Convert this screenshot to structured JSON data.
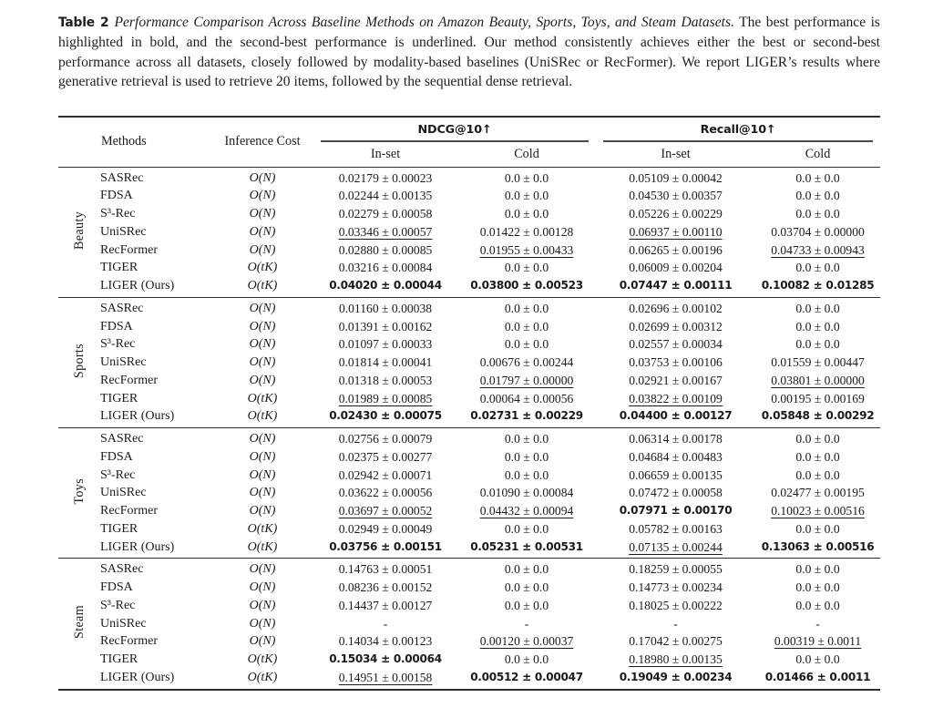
{
  "colors": {
    "text": "#1b1b1b",
    "rule": "#2e2e2e",
    "background": "#ffffff"
  },
  "caption": {
    "label": "Table 2",
    "title": "Performance Comparison Across Baseline Methods on Amazon Beauty, Sports, Toys, and Steam Datasets.",
    "body": "The best performance is highlighted in bold, and the second-best performance is underlined. Our method consistently achieves either the best or second-best performance across all datasets, closely followed by modality-based baselines (UniSRec or RecFormer). We report LIGER’s results where generative retrieval is used to retrieve 20 items, followed by the sequential dense retrieval."
  },
  "table": {
    "headers": {
      "methods": "Methods",
      "inference_cost": "Inference Cost",
      "ndcg": "NDCG@10↑",
      "recall": "Recall@10↑",
      "in_set": "In-set",
      "cold": "Cold"
    },
    "style_legend": {
      "normal": "plain value",
      "bold": "best result",
      "underline": "second-best result"
    },
    "sections": [
      {
        "dataset": "Beauty",
        "rows": [
          {
            "method": "SASRec",
            "cost": "O(N)",
            "cells": [
              {
                "text": "0.02179 ± 0.00023",
                "style": "normal"
              },
              {
                "text": "0.0 ± 0.0",
                "style": "normal"
              },
              {
                "text": "0.05109 ± 0.00042",
                "style": "normal"
              },
              {
                "text": "0.0 ± 0.0",
                "style": "normal"
              }
            ]
          },
          {
            "method": "FDSA",
            "cost": "O(N)",
            "cells": [
              {
                "text": "0.02244 ± 0.00135",
                "style": "normal"
              },
              {
                "text": "0.0 ± 0.0",
                "style": "normal"
              },
              {
                "text": "0.04530 ± 0.00357",
                "style": "normal"
              },
              {
                "text": "0.0 ± 0.0",
                "style": "normal"
              }
            ]
          },
          {
            "method": "S³-Rec",
            "cost": "O(N)",
            "cells": [
              {
                "text": "0.02279 ± 0.00058",
                "style": "normal"
              },
              {
                "text": "0.0 ± 0.0",
                "style": "normal"
              },
              {
                "text": "0.05226 ± 0.00229",
                "style": "normal"
              },
              {
                "text": "0.0 ± 0.0",
                "style": "normal"
              }
            ]
          },
          {
            "method": "UniSRec",
            "cost": "O(N)",
            "cells": [
              {
                "text": "0.03346 ± 0.00057",
                "style": "underline"
              },
              {
                "text": "0.01422 ± 0.00128",
                "style": "normal"
              },
              {
                "text": "0.06937 ± 0.00110",
                "style": "underline"
              },
              {
                "text": "0.03704 ± 0.00000",
                "style": "normal"
              }
            ]
          },
          {
            "method": "RecFormer",
            "cost": "O(N)",
            "cells": [
              {
                "text": "0.02880 ± 0.00085",
                "style": "normal"
              },
              {
                "text": "0.01955 ± 0.00433",
                "style": "underline"
              },
              {
                "text": "0.06265 ± 0.00196",
                "style": "normal"
              },
              {
                "text": "0.04733 ± 0.00943",
                "style": "underline"
              }
            ]
          },
          {
            "method": "TIGER",
            "cost": "O(tK)",
            "cells": [
              {
                "text": "0.03216 ± 0.00084",
                "style": "normal"
              },
              {
                "text": "0.0 ± 0.0",
                "style": "normal"
              },
              {
                "text": "0.06009 ± 0.00204",
                "style": "normal"
              },
              {
                "text": "0.0 ± 0.0",
                "style": "normal"
              }
            ]
          },
          {
            "method": "LIGER (Ours)",
            "cost": "O(tK)",
            "cells": [
              {
                "text": "0.04020 ± 0.00044",
                "style": "bold"
              },
              {
                "text": "0.03800 ± 0.00523",
                "style": "bold"
              },
              {
                "text": "0.07447 ± 0.00111",
                "style": "bold"
              },
              {
                "text": "0.10082 ± 0.01285",
                "style": "bold"
              }
            ]
          }
        ]
      },
      {
        "dataset": "Sports",
        "rows": [
          {
            "method": "SASRec",
            "cost": "O(N)",
            "cells": [
              {
                "text": "0.01160 ± 0.00038",
                "style": "normal"
              },
              {
                "text": "0.0 ± 0.0",
                "style": "normal"
              },
              {
                "text": "0.02696 ± 0.00102",
                "style": "normal"
              },
              {
                "text": "0.0 ± 0.0",
                "style": "normal"
              }
            ]
          },
          {
            "method": "FDSA",
            "cost": "O(N)",
            "cells": [
              {
                "text": "0.01391 ± 0.00162",
                "style": "normal"
              },
              {
                "text": "0.0 ± 0.0",
                "style": "normal"
              },
              {
                "text": "0.02699 ± 0.00312",
                "style": "normal"
              },
              {
                "text": "0.0 ± 0.0",
                "style": "normal"
              }
            ]
          },
          {
            "method": "S³-Rec",
            "cost": "O(N)",
            "cells": [
              {
                "text": "0.01097 ± 0.00033",
                "style": "normal"
              },
              {
                "text": "0.0 ± 0.0",
                "style": "normal"
              },
              {
                "text": "0.02557 ± 0.00034",
                "style": "normal"
              },
              {
                "text": "0.0 ± 0.0",
                "style": "normal"
              }
            ]
          },
          {
            "method": "UniSRec",
            "cost": "O(N)",
            "cells": [
              {
                "text": "0.01814 ± 0.00041",
                "style": "normal"
              },
              {
                "text": "0.00676 ± 0.00244",
                "style": "normal"
              },
              {
                "text": "0.03753 ± 0.00106",
                "style": "normal"
              },
              {
                "text": "0.01559 ± 0.00447",
                "style": "normal"
              }
            ]
          },
          {
            "method": "RecFormer",
            "cost": "O(N)",
            "cells": [
              {
                "text": "0.01318 ± 0.00053",
                "style": "normal"
              },
              {
                "text": "0.01797 ± 0.00000",
                "style": "underline"
              },
              {
                "text": "0.02921 ± 0.00167",
                "style": "normal"
              },
              {
                "text": "0.03801 ± 0.00000",
                "style": "underline"
              }
            ]
          },
          {
            "method": "TIGER",
            "cost": "O(tK)",
            "cells": [
              {
                "text": "0.01989 ± 0.00085",
                "style": "underline"
              },
              {
                "text": "0.00064 ± 0.00056",
                "style": "normal"
              },
              {
                "text": "0.03822 ± 0.00109",
                "style": "underline"
              },
              {
                "text": "0.00195 ± 0.00169",
                "style": "normal"
              }
            ]
          },
          {
            "method": "LIGER (Ours)",
            "cost": "O(tK)",
            "cells": [
              {
                "text": "0.02430 ± 0.00075",
                "style": "bold"
              },
              {
                "text": "0.02731 ± 0.00229",
                "style": "bold"
              },
              {
                "text": "0.04400 ± 0.00127",
                "style": "bold"
              },
              {
                "text": "0.05848 ± 0.00292",
                "style": "bold"
              }
            ]
          }
        ]
      },
      {
        "dataset": "Toys",
        "rows": [
          {
            "method": "SASRec",
            "cost": "O(N)",
            "cells": [
              {
                "text": "0.02756 ± 0.00079",
                "style": "normal"
              },
              {
                "text": "0.0 ± 0.0",
                "style": "normal"
              },
              {
                "text": "0.06314 ± 0.00178",
                "style": "normal"
              },
              {
                "text": "0.0 ± 0.0",
                "style": "normal"
              }
            ]
          },
          {
            "method": "FDSA",
            "cost": "O(N)",
            "cells": [
              {
                "text": "0.02375 ± 0.00277",
                "style": "normal"
              },
              {
                "text": "0.0 ± 0.0",
                "style": "normal"
              },
              {
                "text": "0.04684 ± 0.00483",
                "style": "normal"
              },
              {
                "text": "0.0 ± 0.0",
                "style": "normal"
              }
            ]
          },
          {
            "method": "S³-Rec",
            "cost": "O(N)",
            "cells": [
              {
                "text": "0.02942 ± 0.00071",
                "style": "normal"
              },
              {
                "text": "0.0 ± 0.0",
                "style": "normal"
              },
              {
                "text": "0.06659 ± 0.00135",
                "style": "normal"
              },
              {
                "text": "0.0 ± 0.0",
                "style": "normal"
              }
            ]
          },
          {
            "method": "UniSRec",
            "cost": "O(N)",
            "cells": [
              {
                "text": "0.03622 ± 0.00056",
                "style": "normal"
              },
              {
                "text": "0.01090 ± 0.00084",
                "style": "normal"
              },
              {
                "text": "0.07472 ± 0.00058",
                "style": "normal"
              },
              {
                "text": "0.02477 ± 0.00195",
                "style": "normal"
              }
            ]
          },
          {
            "method": "RecFormer",
            "cost": "O(N)",
            "cells": [
              {
                "text": "0.03697 ± 0.00052",
                "style": "underline"
              },
              {
                "text": "0.04432 ± 0.00094",
                "style": "underline"
              },
              {
                "text": "0.07971 ± 0.00170",
                "style": "bold"
              },
              {
                "text": "0.10023 ± 0.00516",
                "style": "underline"
              }
            ]
          },
          {
            "method": "TIGER",
            "cost": "O(tK)",
            "cells": [
              {
                "text": "0.02949 ± 0.00049",
                "style": "normal"
              },
              {
                "text": "0.0 ± 0.0",
                "style": "normal"
              },
              {
                "text": "0.05782 ± 0.00163",
                "style": "normal"
              },
              {
                "text": "0.0 ± 0.0",
                "style": "normal"
              }
            ]
          },
          {
            "method": "LIGER (Ours)",
            "cost": "O(tK)",
            "cells": [
              {
                "text": "0.03756 ± 0.00151",
                "style": "bold"
              },
              {
                "text": "0.05231 ± 0.00531",
                "style": "bold"
              },
              {
                "text": "0.07135 ± 0.00244",
                "style": "underline"
              },
              {
                "text": "0.13063 ± 0.00516",
                "style": "bold"
              }
            ]
          }
        ]
      },
      {
        "dataset": "Steam",
        "rows": [
          {
            "method": "SASRec",
            "cost": "O(N)",
            "cells": [
              {
                "text": "0.14763 ± 0.00051",
                "style": "normal"
              },
              {
                "text": "0.0 ± 0.0",
                "style": "normal"
              },
              {
                "text": "0.18259 ± 0.00055",
                "style": "normal"
              },
              {
                "text": "0.0 ± 0.0",
                "style": "normal"
              }
            ]
          },
          {
            "method": "FDSA",
            "cost": "O(N)",
            "cells": [
              {
                "text": "0.08236 ± 0.00152",
                "style": "normal"
              },
              {
                "text": "0.0 ± 0.0",
                "style": "normal"
              },
              {
                "text": "0.14773 ± 0.00234",
                "style": "normal"
              },
              {
                "text": "0.0 ± 0.0",
                "style": "normal"
              }
            ]
          },
          {
            "method": "S³-Rec",
            "cost": "O(N)",
            "cells": [
              {
                "text": "0.14437 ± 0.00127",
                "style": "normal"
              },
              {
                "text": "0.0 ± 0.0",
                "style": "normal"
              },
              {
                "text": "0.18025 ± 0.00222",
                "style": "normal"
              },
              {
                "text": "0.0 ± 0.0",
                "style": "normal"
              }
            ]
          },
          {
            "method": "UniSRec",
            "cost": "O(N)",
            "cells": [
              {
                "text": "-",
                "style": "normal"
              },
              {
                "text": "-",
                "style": "normal"
              },
              {
                "text": "-",
                "style": "normal"
              },
              {
                "text": "-",
                "style": "normal"
              }
            ]
          },
          {
            "method": "RecFormer",
            "cost": "O(N)",
            "cells": [
              {
                "text": "0.14034 ± 0.00123",
                "style": "normal"
              },
              {
                "text": "0.00120 ± 0.00037",
                "style": "underline"
              },
              {
                "text": "0.17042 ± 0.00275",
                "style": "normal"
              },
              {
                "text": "0.00319 ± 0.0011",
                "style": "underline"
              }
            ]
          },
          {
            "method": "TIGER",
            "cost": "O(tK)",
            "cells": [
              {
                "text": "0.15034 ± 0.00064",
                "style": "bold"
              },
              {
                "text": "0.0 ± 0.0",
                "style": "normal"
              },
              {
                "text": "0.18980 ± 0.00135",
                "style": "underline"
              },
              {
                "text": "0.0 ± 0.0",
                "style": "normal"
              }
            ]
          },
          {
            "method": "LIGER (Ours)",
            "cost": "O(tK)",
            "cells": [
              {
                "text": "0.14951 ± 0.00158",
                "style": "underline"
              },
              {
                "text": "0.00512 ± 0.00047",
                "style": "bold"
              },
              {
                "text": "0.19049 ± 0.00234",
                "style": "bold"
              },
              {
                "text": "0.01466 ± 0.0011",
                "style": "bold"
              }
            ]
          }
        ]
      }
    ]
  }
}
